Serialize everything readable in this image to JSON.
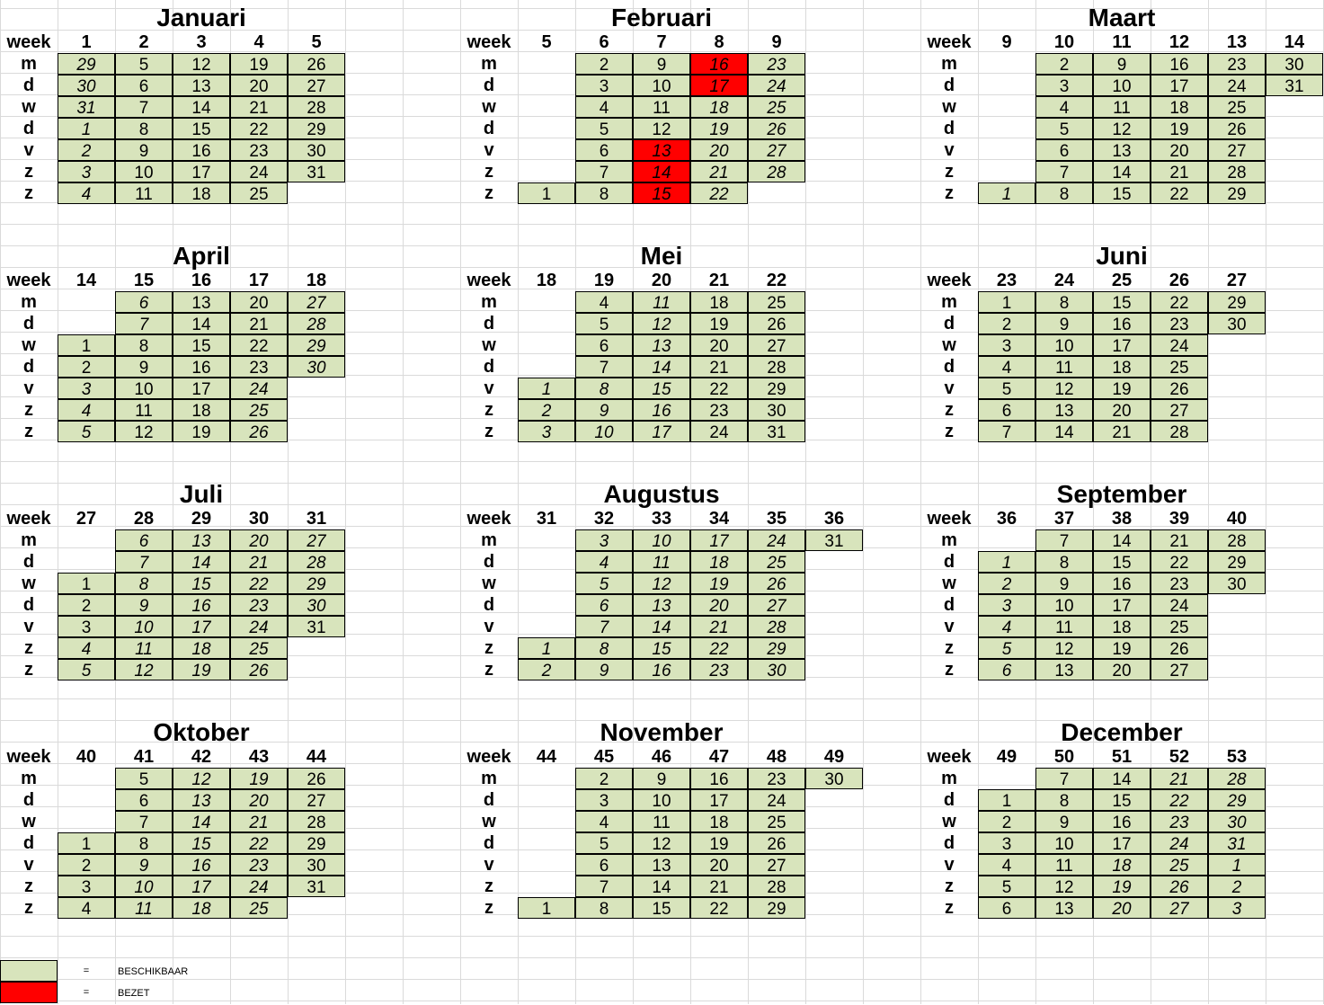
{
  "week_label": "week",
  "day_labels": [
    "m",
    "d",
    "w",
    "d",
    "v",
    "z",
    "z"
  ],
  "colors": {
    "available": "#d8e4bc",
    "occupied": "#ff0000",
    "grid": "#dadada"
  },
  "legend": [
    {
      "swatch_color": "#d8e4bc",
      "symbol": "=",
      "label": "BESCHIKBAAR"
    },
    {
      "swatch_color": "#ff0000",
      "symbol": "=",
      "label": "BEZET"
    }
  ],
  "months": [
    {
      "name": "Januari",
      "weeks": [
        "1",
        "2",
        "3",
        "4",
        "5"
      ],
      "grid": [
        [
          "29",
          "5",
          "12",
          "19",
          "26"
        ],
        [
          "30",
          "6",
          "13",
          "20",
          "27"
        ],
        [
          "31",
          "7",
          "14",
          "21",
          "28"
        ],
        [
          "1",
          "8",
          "15",
          "22",
          "29"
        ],
        [
          "2",
          "9",
          "16",
          "23",
          "30"
        ],
        [
          "3",
          "10",
          "17",
          "24",
          "31"
        ],
        [
          "4",
          "11",
          "18",
          "25",
          ""
        ]
      ],
      "italic": [
        [
          1,
          1,
          1,
          1,
          1,
          1,
          1
        ],
        [
          0,
          0,
          0,
          0,
          0,
          0,
          0
        ],
        [
          0,
          0,
          0,
          0,
          0,
          0,
          0
        ],
        [
          0,
          0,
          0,
          0,
          0,
          0,
          0
        ],
        [
          0,
          0,
          0,
          0,
          0,
          0,
          0
        ]
      ],
      "taken": []
    },
    {
      "name": "Februari",
      "weeks": [
        "5",
        "6",
        "7",
        "8",
        "9"
      ],
      "grid": [
        [
          "",
          "2",
          "9",
          "16",
          "23"
        ],
        [
          "",
          "3",
          "10",
          "17",
          "24"
        ],
        [
          "",
          "4",
          "11",
          "18",
          "25"
        ],
        [
          "",
          "5",
          "12",
          "19",
          "26"
        ],
        [
          "",
          "6",
          "13",
          "20",
          "27"
        ],
        [
          "",
          "7",
          "14",
          "21",
          "28"
        ],
        [
          "1",
          "8",
          "15",
          "22",
          ""
        ]
      ],
      "italic": [
        [
          0,
          0,
          0,
          0,
          0,
          0,
          0
        ],
        [
          0,
          0,
          0,
          0,
          0,
          0,
          0
        ],
        [
          0,
          0,
          0,
          0,
          1,
          1,
          1
        ],
        [
          1,
          1,
          1,
          1,
          1,
          1,
          1
        ],
        [
          1,
          1,
          1,
          1,
          1,
          1,
          0
        ]
      ],
      "taken": [
        [
          2,
          4
        ],
        [
          2,
          5
        ],
        [
          2,
          6
        ],
        [
          3,
          0
        ],
        [
          3,
          1
        ]
      ]
    },
    {
      "name": "Maart",
      "weeks": [
        "9",
        "10",
        "11",
        "12",
        "13",
        "14"
      ],
      "grid": [
        [
          "",
          "2",
          "9",
          "16",
          "23",
          "30"
        ],
        [
          "",
          "3",
          "10",
          "17",
          "24",
          "31"
        ],
        [
          "",
          "4",
          "11",
          "18",
          "25",
          ""
        ],
        [
          "",
          "5",
          "12",
          "19",
          "26",
          ""
        ],
        [
          "",
          "6",
          "13",
          "20",
          "27",
          ""
        ],
        [
          "",
          "7",
          "14",
          "21",
          "28",
          ""
        ],
        [
          "1",
          "8",
          "15",
          "22",
          "29",
          ""
        ]
      ],
      "italic": [
        [
          0,
          0,
          0,
          0,
          0,
          0,
          1
        ],
        [
          0,
          0,
          0,
          0,
          0,
          0,
          0
        ],
        [
          0,
          0,
          0,
          0,
          0,
          0,
          0
        ],
        [
          0,
          0,
          0,
          0,
          0,
          0,
          0
        ],
        [
          0,
          0,
          0,
          0,
          0,
          0,
          0
        ],
        [
          0,
          0,
          0,
          0,
          0,
          0,
          0
        ]
      ],
      "taken": []
    },
    {
      "name": "April",
      "weeks": [
        "14",
        "15",
        "16",
        "17",
        "18"
      ],
      "grid": [
        [
          "",
          "6",
          "13",
          "20",
          "27"
        ],
        [
          "",
          "7",
          "14",
          "21",
          "28"
        ],
        [
          "1",
          "8",
          "15",
          "22",
          "29"
        ],
        [
          "2",
          "9",
          "16",
          "23",
          "30"
        ],
        [
          "3",
          "10",
          "17",
          "24",
          ""
        ],
        [
          "4",
          "11",
          "18",
          "25",
          ""
        ],
        [
          "5",
          "12",
          "19",
          "26",
          ""
        ]
      ],
      "italic": [
        [
          0,
          0,
          0,
          0,
          1,
          1,
          1
        ],
        [
          1,
          1,
          0,
          0,
          0,
          0,
          0
        ],
        [
          0,
          0,
          0,
          0,
          0,
          0,
          0
        ],
        [
          0,
          0,
          0,
          0,
          1,
          1,
          1
        ],
        [
          1,
          1,
          1,
          1,
          0,
          0,
          0
        ]
      ],
      "taken": []
    },
    {
      "name": "Mei",
      "weeks": [
        "18",
        "19",
        "20",
        "21",
        "22"
      ],
      "grid": [
        [
          "",
          "4",
          "11",
          "18",
          "25"
        ],
        [
          "",
          "5",
          "12",
          "19",
          "26"
        ],
        [
          "",
          "6",
          "13",
          "20",
          "27"
        ],
        [
          "",
          "7",
          "14",
          "21",
          "28"
        ],
        [
          "1",
          "8",
          "15",
          "22",
          "29"
        ],
        [
          "2",
          "9",
          "16",
          "23",
          "30"
        ],
        [
          "3",
          "10",
          "17",
          "24",
          "31"
        ]
      ],
      "italic": [
        [
          0,
          0,
          0,
          0,
          1,
          1,
          1
        ],
        [
          0,
          0,
          0,
          0,
          1,
          1,
          1
        ],
        [
          1,
          1,
          1,
          1,
          1,
          1,
          1
        ],
        [
          0,
          0,
          0,
          0,
          0,
          0,
          0
        ],
        [
          0,
          0,
          0,
          0,
          0,
          0,
          0
        ]
      ],
      "taken": []
    },
    {
      "name": "Juni",
      "weeks": [
        "23",
        "24",
        "25",
        "26",
        "27"
      ],
      "grid": [
        [
          "1",
          "8",
          "15",
          "22",
          "29"
        ],
        [
          "2",
          "9",
          "16",
          "23",
          "30"
        ],
        [
          "3",
          "10",
          "17",
          "24",
          ""
        ],
        [
          "4",
          "11",
          "18",
          "25",
          ""
        ],
        [
          "5",
          "12",
          "19",
          "26",
          ""
        ],
        [
          "6",
          "13",
          "20",
          "27",
          ""
        ],
        [
          "7",
          "14",
          "21",
          "28",
          ""
        ]
      ],
      "italic": [
        [
          0,
          0,
          0,
          0,
          0,
          0,
          0
        ],
        [
          0,
          0,
          0,
          0,
          0,
          0,
          0
        ],
        [
          0,
          0,
          0,
          0,
          0,
          0,
          0
        ],
        [
          0,
          0,
          0,
          0,
          0,
          0,
          0
        ],
        [
          0,
          0,
          0,
          0,
          0,
          0,
          0
        ]
      ],
      "taken": []
    },
    {
      "name": "Juli",
      "weeks": [
        "27",
        "28",
        "29",
        "30",
        "31"
      ],
      "grid": [
        [
          "",
          "6",
          "13",
          "20",
          "27"
        ],
        [
          "",
          "7",
          "14",
          "21",
          "28"
        ],
        [
          "1",
          "8",
          "15",
          "22",
          "29"
        ],
        [
          "2",
          "9",
          "16",
          "23",
          "30"
        ],
        [
          "3",
          "10",
          "17",
          "24",
          "31"
        ],
        [
          "4",
          "11",
          "18",
          "25",
          ""
        ],
        [
          "5",
          "12",
          "19",
          "26",
          ""
        ]
      ],
      "italic": [
        [
          0,
          0,
          0,
          0,
          0,
          1,
          1
        ],
        [
          1,
          1,
          1,
          1,
          1,
          1,
          1
        ],
        [
          1,
          1,
          1,
          1,
          1,
          1,
          1
        ],
        [
          1,
          1,
          1,
          1,
          1,
          1,
          1
        ],
        [
          1,
          1,
          1,
          1,
          0,
          0,
          0
        ]
      ],
      "taken": []
    },
    {
      "name": "Augustus",
      "weeks": [
        "31",
        "32",
        "33",
        "34",
        "35",
        "36"
      ],
      "grid": [
        [
          "",
          "3",
          "10",
          "17",
          "24",
          "31"
        ],
        [
          "",
          "4",
          "11",
          "18",
          "25",
          ""
        ],
        [
          "",
          "5",
          "12",
          "19",
          "26",
          ""
        ],
        [
          "",
          "6",
          "13",
          "20",
          "27",
          ""
        ],
        [
          "",
          "7",
          "14",
          "21",
          "28",
          ""
        ],
        [
          "1",
          "8",
          "15",
          "22",
          "29",
          ""
        ],
        [
          "2",
          "9",
          "16",
          "23",
          "30",
          ""
        ]
      ],
      "italic": [
        [
          0,
          0,
          0,
          0,
          0,
          1,
          1
        ],
        [
          1,
          1,
          1,
          1,
          1,
          1,
          1
        ],
        [
          1,
          1,
          1,
          1,
          1,
          1,
          1
        ],
        [
          1,
          1,
          1,
          1,
          1,
          1,
          1
        ],
        [
          1,
          1,
          1,
          1,
          1,
          1,
          1
        ],
        [
          0,
          0,
          0,
          0,
          0,
          0,
          0
        ]
      ],
      "taken": []
    },
    {
      "name": "September",
      "weeks": [
        "36",
        "37",
        "38",
        "39",
        "40"
      ],
      "grid": [
        [
          "",
          "7",
          "14",
          "21",
          "28"
        ],
        [
          "1",
          "8",
          "15",
          "22",
          "29"
        ],
        [
          "2",
          "9",
          "16",
          "23",
          "30"
        ],
        [
          "3",
          "10",
          "17",
          "24",
          ""
        ],
        [
          "4",
          "11",
          "18",
          "25",
          ""
        ],
        [
          "5",
          "12",
          "19",
          "26",
          ""
        ],
        [
          "6",
          "13",
          "20",
          "27",
          ""
        ]
      ],
      "italic": [
        [
          0,
          1,
          1,
          1,
          1,
          1,
          1
        ],
        [
          0,
          0,
          0,
          0,
          0,
          0,
          0
        ],
        [
          0,
          0,
          0,
          0,
          0,
          0,
          0
        ],
        [
          0,
          0,
          0,
          0,
          0,
          0,
          0
        ],
        [
          0,
          0,
          0,
          0,
          0,
          0,
          0
        ]
      ],
      "taken": []
    },
    {
      "name": "Oktober",
      "weeks": [
        "40",
        "41",
        "42",
        "43",
        "44"
      ],
      "grid": [
        [
          "",
          "5",
          "12",
          "19",
          "26"
        ],
        [
          "",
          "6",
          "13",
          "20",
          "27"
        ],
        [
          "",
          "7",
          "14",
          "21",
          "28"
        ],
        [
          "1",
          "8",
          "15",
          "22",
          "29"
        ],
        [
          "2",
          "9",
          "16",
          "23",
          "30"
        ],
        [
          "3",
          "10",
          "17",
          "24",
          "31"
        ],
        [
          "4",
          "11",
          "18",
          "25",
          ""
        ]
      ],
      "italic": [
        [
          0,
          0,
          0,
          0,
          0,
          0,
          0
        ],
        [
          0,
          0,
          0,
          0,
          1,
          1,
          1
        ],
        [
          1,
          1,
          1,
          1,
          1,
          1,
          1
        ],
        [
          1,
          1,
          1,
          1,
          1,
          1,
          1
        ],
        [
          0,
          0,
          0,
          0,
          0,
          0,
          0
        ]
      ],
      "taken": []
    },
    {
      "name": "November",
      "weeks": [
        "44",
        "45",
        "46",
        "47",
        "48",
        "49"
      ],
      "grid": [
        [
          "",
          "2",
          "9",
          "16",
          "23",
          "30"
        ],
        [
          "",
          "3",
          "10",
          "17",
          "24",
          ""
        ],
        [
          "",
          "4",
          "11",
          "18",
          "25",
          ""
        ],
        [
          "",
          "5",
          "12",
          "19",
          "26",
          ""
        ],
        [
          "",
          "6",
          "13",
          "20",
          "27",
          ""
        ],
        [
          "",
          "7",
          "14",
          "21",
          "28",
          ""
        ],
        [
          "1",
          "8",
          "15",
          "22",
          "29",
          ""
        ]
      ],
      "italic": [
        [
          0,
          0,
          0,
          0,
          0,
          0,
          0
        ],
        [
          0,
          0,
          0,
          0,
          0,
          0,
          0
        ],
        [
          0,
          0,
          0,
          0,
          0,
          0,
          0
        ],
        [
          0,
          0,
          0,
          0,
          0,
          0,
          0
        ],
        [
          0,
          0,
          0,
          0,
          0,
          0,
          0
        ],
        [
          0,
          0,
          0,
          0,
          0,
          0,
          0
        ]
      ],
      "taken": []
    },
    {
      "name": "December",
      "weeks": [
        "49",
        "50",
        "51",
        "52",
        "53"
      ],
      "grid": [
        [
          "",
          "7",
          "14",
          "21",
          "28"
        ],
        [
          "1",
          "8",
          "15",
          "22",
          "29"
        ],
        [
          "2",
          "9",
          "16",
          "23",
          "30"
        ],
        [
          "3",
          "10",
          "17",
          "24",
          "31"
        ],
        [
          "4",
          "11",
          "18",
          "25",
          "1"
        ],
        [
          "5",
          "12",
          "19",
          "26",
          "2"
        ],
        [
          "6",
          "13",
          "20",
          "27",
          "3"
        ]
      ],
      "italic": [
        [
          0,
          0,
          0,
          0,
          0,
          0,
          0
        ],
        [
          0,
          0,
          0,
          0,
          0,
          0,
          0
        ],
        [
          0,
          0,
          0,
          0,
          1,
          1,
          1
        ],
        [
          1,
          1,
          1,
          1,
          1,
          1,
          1
        ],
        [
          1,
          1,
          1,
          1,
          1,
          1,
          1
        ]
      ],
      "taken": []
    }
  ]
}
